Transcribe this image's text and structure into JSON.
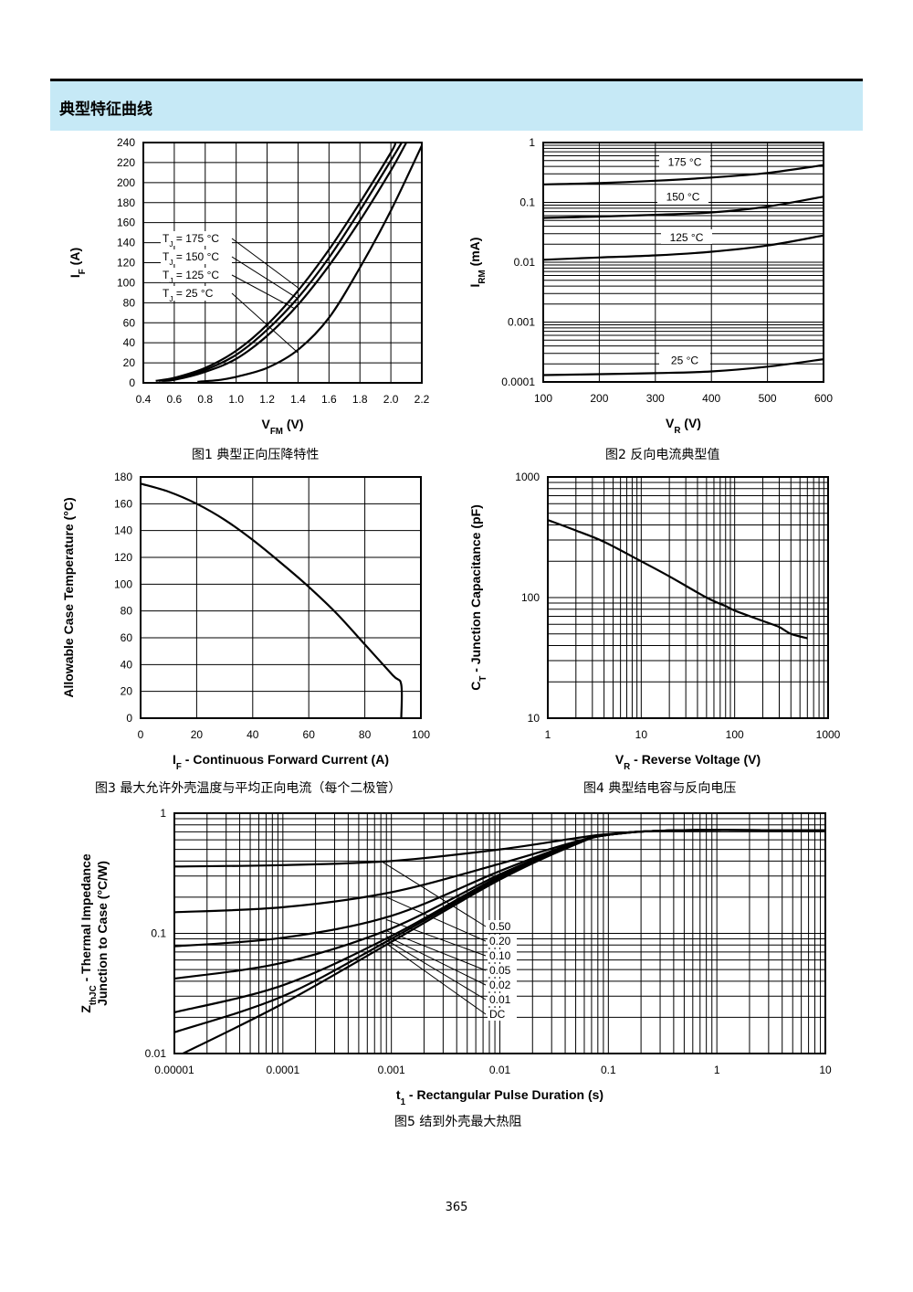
{
  "section_title": "典型特征曲线",
  "page_number": "365",
  "captions": {
    "fig1": "图1  典型正向压降特性",
    "fig2": "图2  反向电流典型值",
    "fig3": "图3  最大允许外壳温度与平均正向电流（每个二极管）",
    "fig4": "图4  典型结电容与反向电压",
    "fig5": "图5  结到外壳最大热阻"
  },
  "chart_data": [
    {
      "id": "fig1",
      "type": "line",
      "xlabel": "V_FM (V)",
      "ylabel": "I_F (A)",
      "xlim": [
        0.4,
        2.2
      ],
      "ylim": [
        0,
        240
      ],
      "xticks": [
        0.4,
        0.6,
        0.8,
        1.0,
        1.2,
        1.4,
        1.6,
        1.8,
        2.0,
        2.2
      ],
      "xtick_labels": [
        "0.4",
        "0.6",
        "0.8",
        "1.0",
        "1.2",
        "1.4",
        "1.6",
        "1.8",
        "2.0",
        "2.2"
      ],
      "yticks": [
        0,
        20,
        40,
        60,
        80,
        100,
        120,
        140,
        160,
        180,
        200,
        220,
        240
      ],
      "grid": true,
      "series": [
        {
          "name": "T_J = 175 °C",
          "x": [
            0.48,
            0.6,
            0.8,
            1.0,
            1.2,
            1.4,
            1.6,
            1.8,
            2.0,
            2.03
          ],
          "y": [
            2,
            5,
            15,
            32,
            58,
            92,
            133,
            180,
            230,
            240
          ]
        },
        {
          "name": "T_J = 150 °C",
          "x": [
            0.5,
            0.6,
            0.8,
            1.0,
            1.2,
            1.4,
            1.6,
            1.8,
            2.0,
            2.07
          ],
          "y": [
            2,
            4,
            13,
            28,
            53,
            85,
            125,
            172,
            222,
            240
          ]
        },
        {
          "name": "T_J = 125 °C",
          "x": [
            0.52,
            0.6,
            0.8,
            1.0,
            1.2,
            1.4,
            1.6,
            1.8,
            2.0,
            2.1
          ],
          "y": [
            2,
            3,
            11,
            24,
            47,
            78,
            117,
            162,
            212,
            240
          ]
        },
        {
          "name": "T_J = 25 °C",
          "x": [
            0.75,
            0.9,
            1.0,
            1.2,
            1.4,
            1.6,
            1.8,
            2.0,
            2.2
          ],
          "y": [
            1,
            3,
            6,
            15,
            33,
            65,
            115,
            172,
            237
          ]
        }
      ],
      "annotations": [
        "T_J = 175 °C",
        "T_J = 150 °C",
        "T_J = 125 °C",
        "T_J = 25 °C"
      ]
    },
    {
      "id": "fig2",
      "type": "line",
      "xlabel": "V_R (V)",
      "ylabel": "I_RM (mA)",
      "yscale": "log",
      "xlim": [
        100,
        600
      ],
      "ylim": [
        0.0001,
        1
      ],
      "xticks": [
        100,
        200,
        300,
        400,
        500,
        600
      ],
      "yticks": [
        0.0001,
        0.001,
        0.01,
        0.1,
        1
      ],
      "ytick_labels": [
        "0.0001",
        "0.001",
        "0.01",
        "0.1",
        "1"
      ],
      "grid": true,
      "series": [
        {
          "name": "175 °C",
          "x": [
            100,
            200,
            300,
            400,
            500,
            600
          ],
          "y": [
            0.2,
            0.21,
            0.23,
            0.26,
            0.31,
            0.42
          ]
        },
        {
          "name": "150 °C",
          "x": [
            100,
            200,
            300,
            400,
            500,
            600
          ],
          "y": [
            0.055,
            0.058,
            0.062,
            0.068,
            0.085,
            0.125
          ]
        },
        {
          "name": "125 °C",
          "x": [
            100,
            200,
            300,
            400,
            500,
            600
          ],
          "y": [
            0.011,
            0.012,
            0.013,
            0.015,
            0.019,
            0.028
          ]
        },
        {
          "name": "25 °C",
          "x": [
            100,
            200,
            300,
            400,
            500,
            600
          ],
          "y": [
            0.00013,
            0.000135,
            0.00014,
            0.00015,
            0.00018,
            0.00024
          ]
        }
      ],
      "annotations": [
        "175 °C",
        "150 °C",
        "125 °C",
        "25 °C"
      ]
    },
    {
      "id": "fig3",
      "type": "line",
      "xlabel": "I_F - Continuous Forward Current (A)",
      "ylabel": "Allowable Case Temperature (°C)",
      "xlim": [
        0,
        100
      ],
      "ylim": [
        0,
        180
      ],
      "xticks": [
        0,
        20,
        40,
        60,
        80,
        100
      ],
      "yticks": [
        0,
        20,
        40,
        60,
        80,
        100,
        120,
        140,
        160,
        180
      ],
      "grid": true,
      "series": [
        {
          "name": "",
          "x": [
            0,
            10,
            20,
            30,
            40,
            50,
            60,
            70,
            80,
            90,
            93,
            93
          ],
          "y": [
            175,
            169,
            160,
            148,
            133,
            116,
            98,
            78,
            55,
            32,
            25,
            0
          ]
        }
      ]
    },
    {
      "id": "fig4",
      "type": "line",
      "xlabel": "V_R - Reverse Voltage (V)",
      "ylabel": "C_T - Junction Capacitance (pF)",
      "xscale": "log",
      "yscale": "log",
      "xlim": [
        1,
        1000
      ],
      "ylim": [
        10,
        1000
      ],
      "xticks": [
        1,
        10,
        100,
        1000
      ],
      "yticks": [
        10,
        100,
        1000
      ],
      "grid": true,
      "series": [
        {
          "name": "",
          "x": [
            1,
            2,
            4,
            10,
            20,
            50,
            80,
            100,
            200,
            300,
            400,
            600
          ],
          "y": [
            440,
            360,
            290,
            200,
            150,
            100,
            85,
            78,
            64,
            57,
            50,
            46
          ]
        }
      ]
    },
    {
      "id": "fig5",
      "type": "line",
      "xlabel": "t_1 - Rectangular Pulse Duration (s)",
      "ylabel": "Z_thJC - Thermal Impedance Junction to Case (°C/W)",
      "xscale": "log",
      "yscale": "log",
      "xlim": [
        1e-05,
        10
      ],
      "ylim": [
        0.01,
        1
      ],
      "xticks": [
        1e-05,
        0.0001,
        0.001,
        0.01,
        0.1,
        1,
        10
      ],
      "xtick_labels": [
        "0.00001",
        "0.0001",
        "0.001",
        "0.01",
        "0.1",
        "1",
        "10"
      ],
      "yticks": [
        0.01,
        0.1,
        1
      ],
      "ytick_labels": [
        "0.01",
        "0.1",
        "1"
      ],
      "grid": true,
      "series": [
        {
          "name": "0.50",
          "x": [
            1e-05,
            0.0001,
            0.001,
            0.01,
            0.05,
            0.1,
            0.4,
            10
          ],
          "y": [
            0.36,
            0.37,
            0.4,
            0.5,
            0.62,
            0.67,
            0.72,
            0.72
          ]
        },
        {
          "name": "0.20",
          "x": [
            1e-05,
            0.0001,
            0.001,
            0.01,
            0.05,
            0.1,
            0.4,
            10
          ],
          "y": [
            0.15,
            0.165,
            0.22,
            0.38,
            0.58,
            0.66,
            0.72,
            0.72
          ]
        },
        {
          "name": "0.10",
          "x": [
            1e-05,
            0.0001,
            0.001,
            0.01,
            0.05,
            0.1,
            0.4,
            10
          ],
          "y": [
            0.078,
            0.092,
            0.14,
            0.33,
            0.57,
            0.66,
            0.72,
            0.72
          ]
        },
        {
          "name": "0.05",
          "x": [
            1e-05,
            0.0001,
            0.001,
            0.01,
            0.05,
            0.1,
            0.4,
            10
          ],
          "y": [
            0.042,
            0.057,
            0.11,
            0.31,
            0.56,
            0.66,
            0.72,
            0.72
          ]
        },
        {
          "name": "0.02",
          "x": [
            1e-05,
            0.0001,
            0.001,
            0.01,
            0.05,
            0.1,
            0.4,
            10
          ],
          "y": [
            0.022,
            0.037,
            0.095,
            0.3,
            0.56,
            0.66,
            0.72,
            0.72
          ]
        },
        {
          "name": "0.01",
          "x": [
            1e-05,
            0.0001,
            0.001,
            0.01,
            0.05,
            0.1,
            0.4,
            10
          ],
          "y": [
            0.015,
            0.03,
            0.09,
            0.29,
            0.56,
            0.66,
            0.72,
            0.72
          ]
        },
        {
          "name": "DC",
          "x": [
            1.2e-05,
            0.0001,
            0.001,
            0.01,
            0.05,
            0.1,
            0.4,
            10
          ],
          "y": [
            0.01,
            0.026,
            0.085,
            0.28,
            0.55,
            0.66,
            0.72,
            0.72
          ]
        }
      ],
      "annotations": [
        "0.50",
        "0.20",
        "0.10",
        "0.05",
        "0.02",
        "0.01",
        "DC"
      ]
    }
  ]
}
